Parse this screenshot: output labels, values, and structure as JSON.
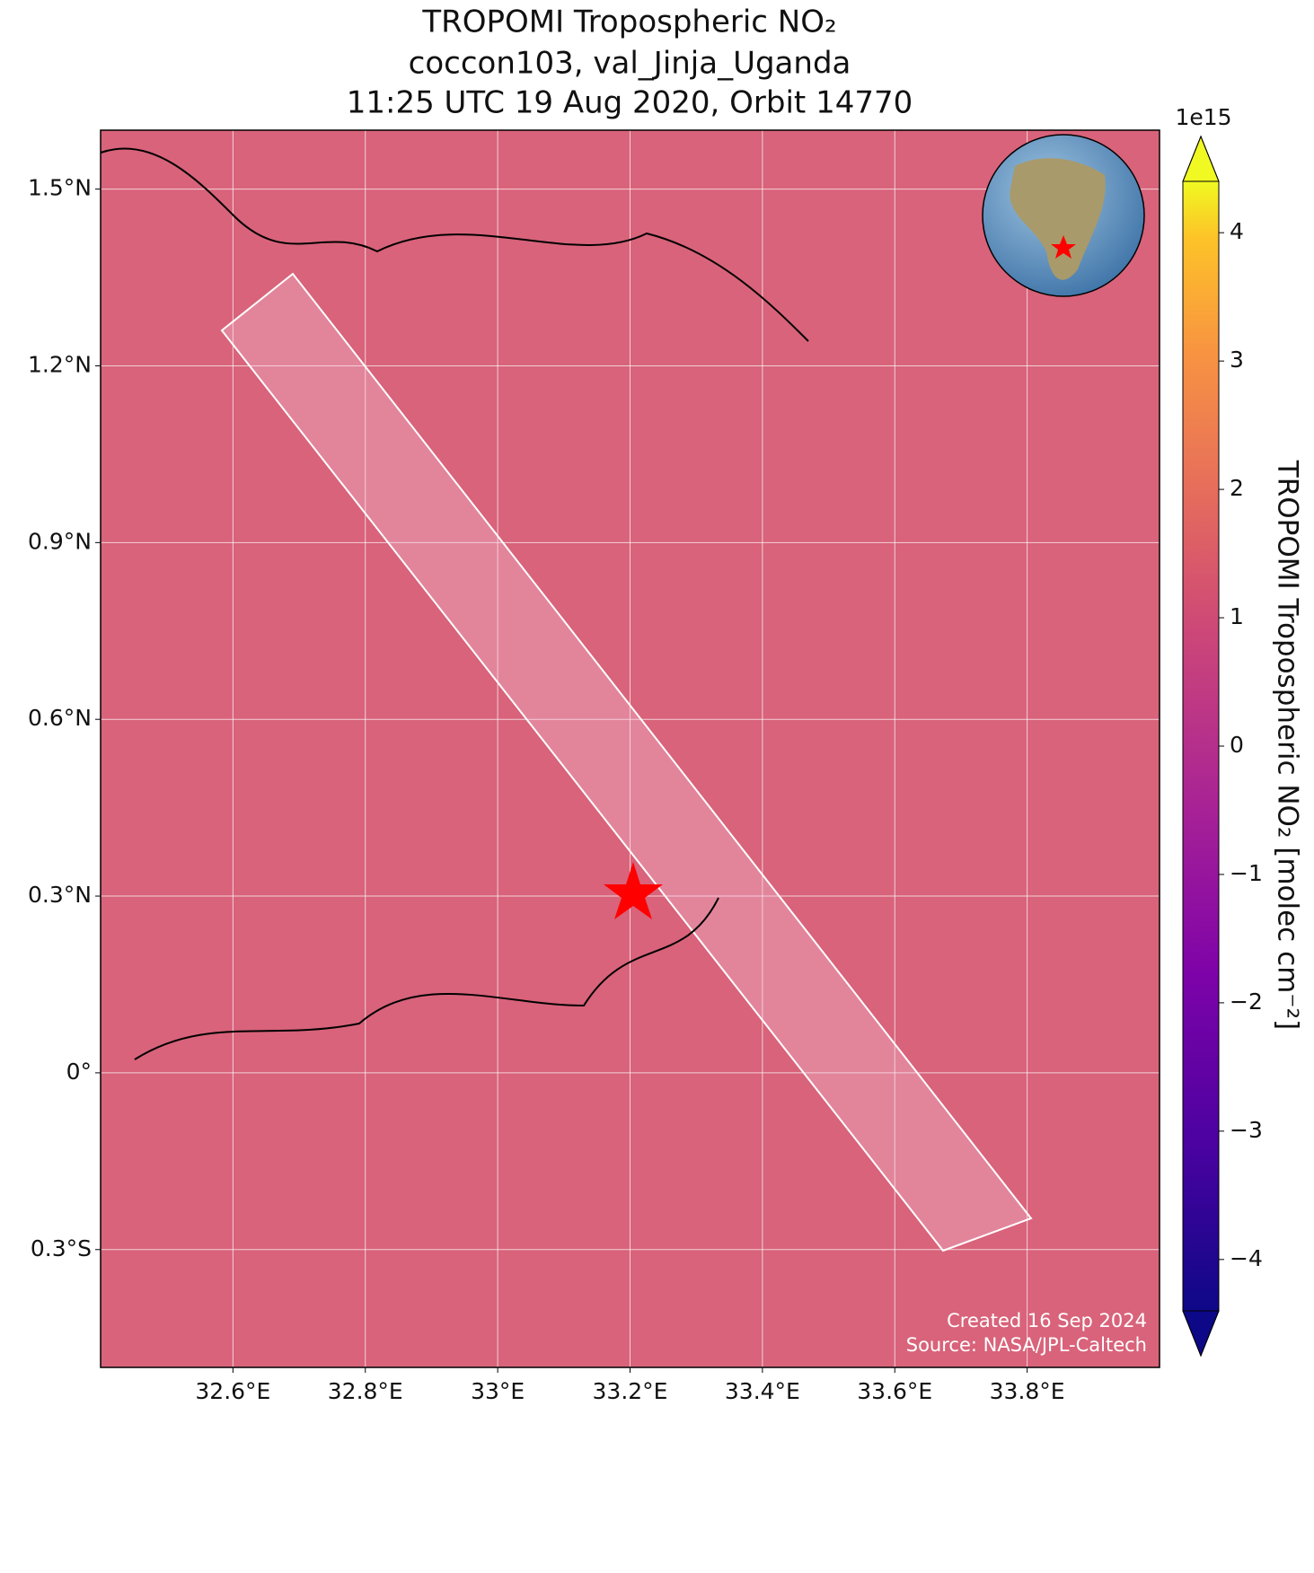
{
  "chart_data": {
    "type": "map",
    "title": [
      "TROPOMI Tropospheric NO₂",
      "coccon103, val_Jinja_Uganda",
      "11:25 UTC 19 Aug 2020, Orbit 14770"
    ],
    "xlim": [
      32.4,
      34.0
    ],
    "ylim": [
      -0.5,
      1.6
    ],
    "xticks": [
      {
        "value": 32.6,
        "label": "32.6°E"
      },
      {
        "value": 32.8,
        "label": "32.8°E"
      },
      {
        "value": 33.0,
        "label": "33°E"
      },
      {
        "value": 33.2,
        "label": "33.2°E"
      },
      {
        "value": 33.4,
        "label": "33.4°E"
      },
      {
        "value": 33.6,
        "label": "33.6°E"
      },
      {
        "value": 33.8,
        "label": "33.8°E"
      }
    ],
    "yticks": [
      {
        "value": 1.5,
        "label": "1.5°N"
      },
      {
        "value": 1.2,
        "label": "1.2°N"
      },
      {
        "value": 0.9,
        "label": "0.9°N"
      },
      {
        "value": 0.6,
        "label": "0.6°N"
      },
      {
        "value": 0.3,
        "label": "0.3°N"
      },
      {
        "value": 0,
        "label": "0°"
      },
      {
        "value": -0.3,
        "label": "0.3°S"
      }
    ],
    "grid": true,
    "colorbar": {
      "label": "TROPOMI Tropospheric NO₂ [molec cm⁻²]",
      "exponent": "1e15",
      "colormap": "plasma",
      "clim": [
        -4.4,
        4.4
      ],
      "ticks": [
        {
          "value": -4,
          "label": "−4"
        },
        {
          "value": -3,
          "label": "−3"
        },
        {
          "value": -2,
          "label": "−2"
        },
        {
          "value": -1,
          "label": "−1"
        },
        0,
        1,
        2,
        3,
        4
      ]
    },
    "credits": [
      "Created 16 Sep 2024",
      "Source: NASA/JPL-Caltech"
    ]
  }
}
